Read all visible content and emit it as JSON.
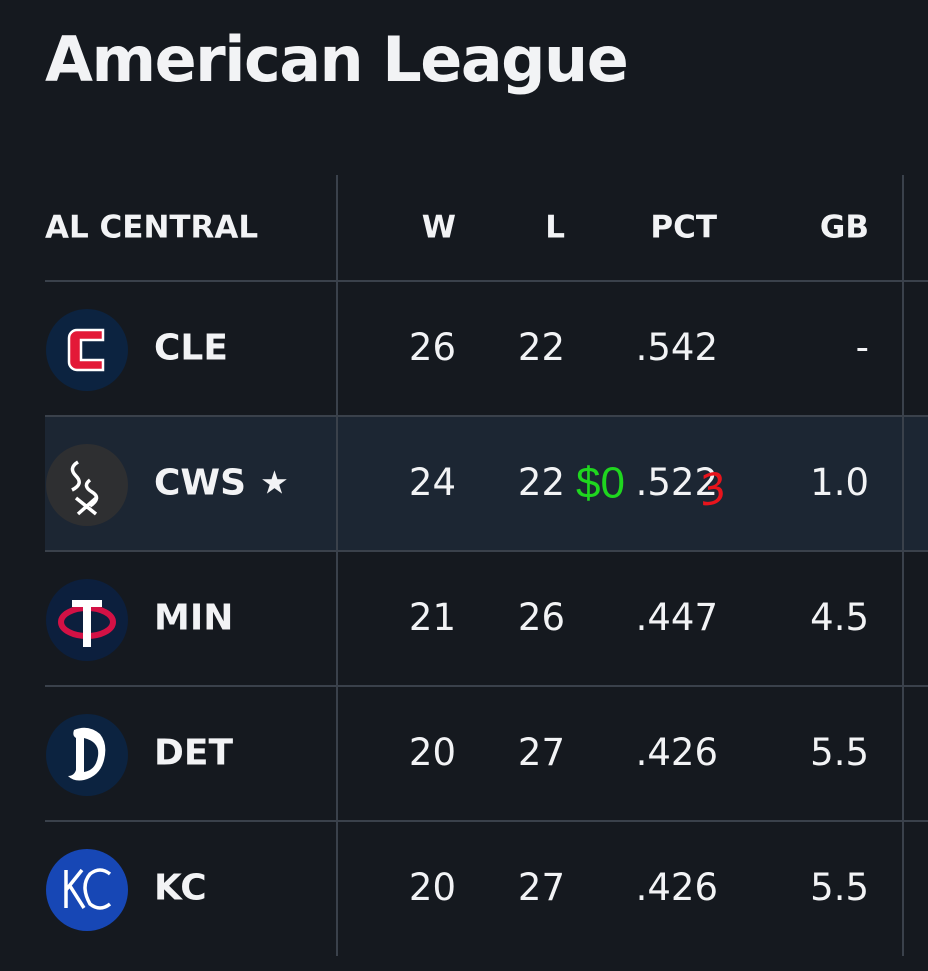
{
  "header": {
    "title": "American League"
  },
  "table": {
    "columns": [
      "AL CENTRAL",
      "W",
      "L",
      "PCT",
      "GB"
    ],
    "rows": [
      {
        "team": "CLE",
        "w": "26",
        "l": "22",
        "pct": ".542",
        "gb": "-"
      },
      {
        "team": "CWS",
        "marker": "★",
        "w": "24",
        "l": "22",
        "pct": ".522",
        "gb": "1.0"
      },
      {
        "team": "MIN",
        "w": "21",
        "l": "26",
        "pct": ".447",
        "gb": "4.5"
      },
      {
        "team": "DET",
        "w": "20",
        "l": "27",
        "pct": ".426",
        "gb": "5.5"
      },
      {
        "team": "KC",
        "w": "20",
        "l": "27",
        "pct": ".426",
        "gb": "5.5"
      }
    ]
  },
  "annotations": [
    {
      "text": "$0",
      "color": "#1fd61f"
    },
    {
      "text": "3",
      "color": "#e8141c"
    }
  ]
}
